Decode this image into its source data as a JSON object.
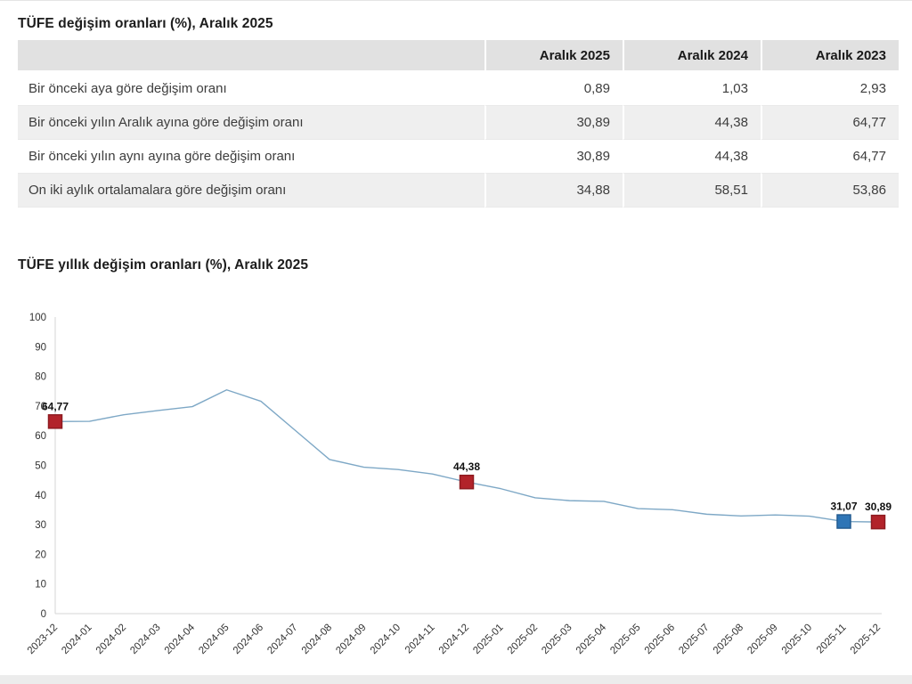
{
  "table_section": {
    "title": "TÜFE değişim oranları (%), Aralık 2025",
    "columns": [
      "Aralık 2025",
      "Aralık 2024",
      "Aralık 2023"
    ],
    "rows": [
      {
        "label": "Bir önceki aya göre değişim oranı",
        "values": [
          "0,89",
          "1,03",
          "2,93"
        ]
      },
      {
        "label": "Bir önceki yılın Aralık ayına göre değişim oranı",
        "values": [
          "30,89",
          "44,38",
          "64,77"
        ]
      },
      {
        "label": "Bir önceki yılın aynı ayına göre değişim oranı",
        "values": [
          "30,89",
          "44,38",
          "64,77"
        ]
      },
      {
        "label": "On iki aylık ortalamalara göre değişim oranı",
        "values": [
          "34,88",
          "58,51",
          "53,86"
        ]
      }
    ]
  },
  "chart_section": {
    "title": "TÜFE yıllık değişim oranları (%), Aralık 2025"
  },
  "chart_data": {
    "type": "line",
    "title": "TÜFE yıllık değişim oranları (%), Aralık 2025",
    "x": [
      "2023-12",
      "2024-01",
      "2024-02",
      "2024-03",
      "2024-04",
      "2024-05",
      "2024-06",
      "2024-07",
      "2024-08",
      "2024-09",
      "2024-10",
      "2024-11",
      "2024-12",
      "2025-01",
      "2025-02",
      "2025-03",
      "2025-04",
      "2025-05",
      "2025-06",
      "2025-07",
      "2025-08",
      "2025-09",
      "2025-10",
      "2025-11",
      "2025-12"
    ],
    "values": [
      64.77,
      64.86,
      67.07,
      68.5,
      69.8,
      75.45,
      71.6,
      61.78,
      51.97,
      49.38,
      48.58,
      47.09,
      44.38,
      42.12,
      39.05,
      38.1,
      37.86,
      35.41,
      35.05,
      33.52,
      32.95,
      33.29,
      32.87,
      31.07,
      30.89
    ],
    "ylim": [
      0,
      100
    ],
    "y_ticks": [
      0,
      10,
      20,
      30,
      40,
      50,
      60,
      70,
      80,
      90,
      100
    ],
    "grid": false,
    "legend": false,
    "x_label_rotation": -45,
    "line_color": "#7ea8c6",
    "axis_color": "#d6d6d6",
    "markers": [
      {
        "x": "2023-12",
        "value": 64.77,
        "label": "64,77",
        "color": "#b2232a",
        "border": "#8e1b20"
      },
      {
        "x": "2024-12",
        "value": 44.38,
        "label": "44,38",
        "color": "#b2232a",
        "border": "#8e1b20"
      },
      {
        "x": "2025-11",
        "value": 31.07,
        "label": "31,07",
        "color": "#2e75b6",
        "border": "#235c91"
      },
      {
        "x": "2025-12",
        "value": 30.89,
        "label": "30,89",
        "color": "#b2232a",
        "border": "#8e1b20"
      }
    ]
  }
}
